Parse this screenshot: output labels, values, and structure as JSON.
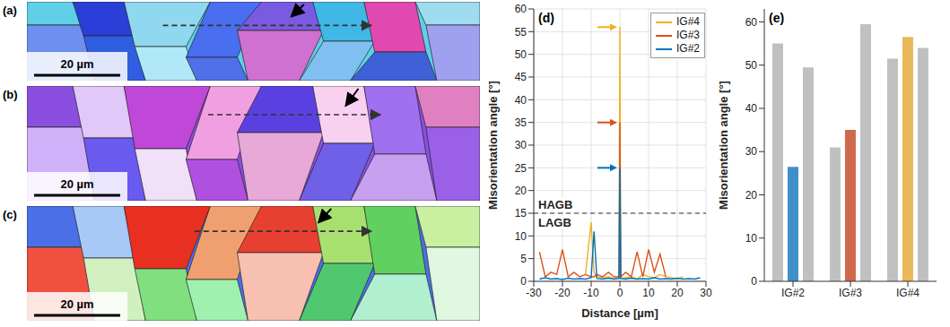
{
  "maps": [
    {
      "label": "(a)",
      "scale_bar": "20 µm"
    },
    {
      "label": "(b)",
      "scale_bar": "20 µm"
    },
    {
      "label": "(c)",
      "scale_bar": "20 µm"
    }
  ],
  "chart_data": [
    {
      "label": "(d)",
      "type": "line",
      "x_label": "Distance [µm]",
      "y_label": "Misorientation angle [°]",
      "x": [
        -28,
        -26,
        -24,
        -22,
        -20,
        -18,
        -16,
        -14,
        -12,
        -10,
        -9,
        -8,
        -6,
        -4,
        -2,
        -0.3,
        0,
        0.3,
        2,
        4,
        6,
        8,
        10,
        12,
        14,
        16,
        18,
        20,
        22,
        24,
        26,
        28
      ],
      "series": [
        {
          "name": "IG#4",
          "color": "#EDB120",
          "values": [
            null,
            null,
            null,
            null,
            null,
            null,
            null,
            null,
            1.5,
            13,
            2,
            1,
            0.8,
            1,
            0.5,
            0.8,
            56,
            0.6,
            0.8,
            1,
            0.5,
            1.5,
            1,
            0.8,
            1.5,
            1,
            0.8,
            0.5,
            1,
            null,
            null,
            null
          ]
        },
        {
          "name": "IG#3",
          "color": "#D95319",
          "values": [
            6.5,
            1,
            2,
            1.5,
            7,
            1,
            2,
            1,
            1.5,
            1,
            1,
            1.5,
            1,
            2,
            1,
            1,
            35,
            1,
            2,
            1,
            6.5,
            1,
            7,
            2,
            6,
            1,
            null,
            null,
            null,
            null,
            null,
            null
          ]
        },
        {
          "name": "IG#2",
          "color": "#0072BD",
          "values": [
            0.5,
            0.8,
            0.5,
            0.6,
            0.4,
            0.7,
            0.5,
            0.6,
            0.5,
            0.8,
            11,
            0.6,
            0.5,
            0.7,
            0.5,
            0.6,
            25,
            0.6,
            0.5,
            0.7,
            0.5,
            0.6,
            0.5,
            0.8,
            0.5,
            0.6,
            0.5,
            0.7,
            0.5,
            0.6,
            0.5,
            0.8
          ]
        }
      ],
      "xlim": [
        -30,
        30
      ],
      "xticks": [
        -30,
        -20,
        -10,
        0,
        10,
        20,
        30
      ],
      "ylim": [
        0,
        60
      ],
      "yticks": [
        0,
        5,
        10,
        15,
        20,
        25,
        30,
        35,
        40,
        45,
        50,
        55,
        60
      ],
      "grid": true,
      "legend": "top right",
      "threshold": 15,
      "threshold_labels": [
        "HAGB",
        "LAGB"
      ]
    },
    {
      "label": "(e)",
      "type": "bar",
      "y_label": "Misorientation angle [°]",
      "categories": [
        "IG#2",
        "IG#3",
        "IG#4"
      ],
      "series": [
        {
          "color": "#c0c0c0",
          "values": [
            55,
            31,
            51.5
          ]
        },
        {
          "colors": [
            "#3f8fc8",
            "#d0694b",
            "#e8b85a"
          ],
          "values": [
            26.5,
            35,
            56.5
          ]
        },
        {
          "color": "#c0c0c0",
          "values": [
            49.5,
            59.5,
            54
          ]
        }
      ],
      "ylim": [
        0,
        63
      ],
      "yticks": [
        0,
        10,
        20,
        30,
        40,
        50,
        60
      ],
      "grid": false
    }
  ]
}
